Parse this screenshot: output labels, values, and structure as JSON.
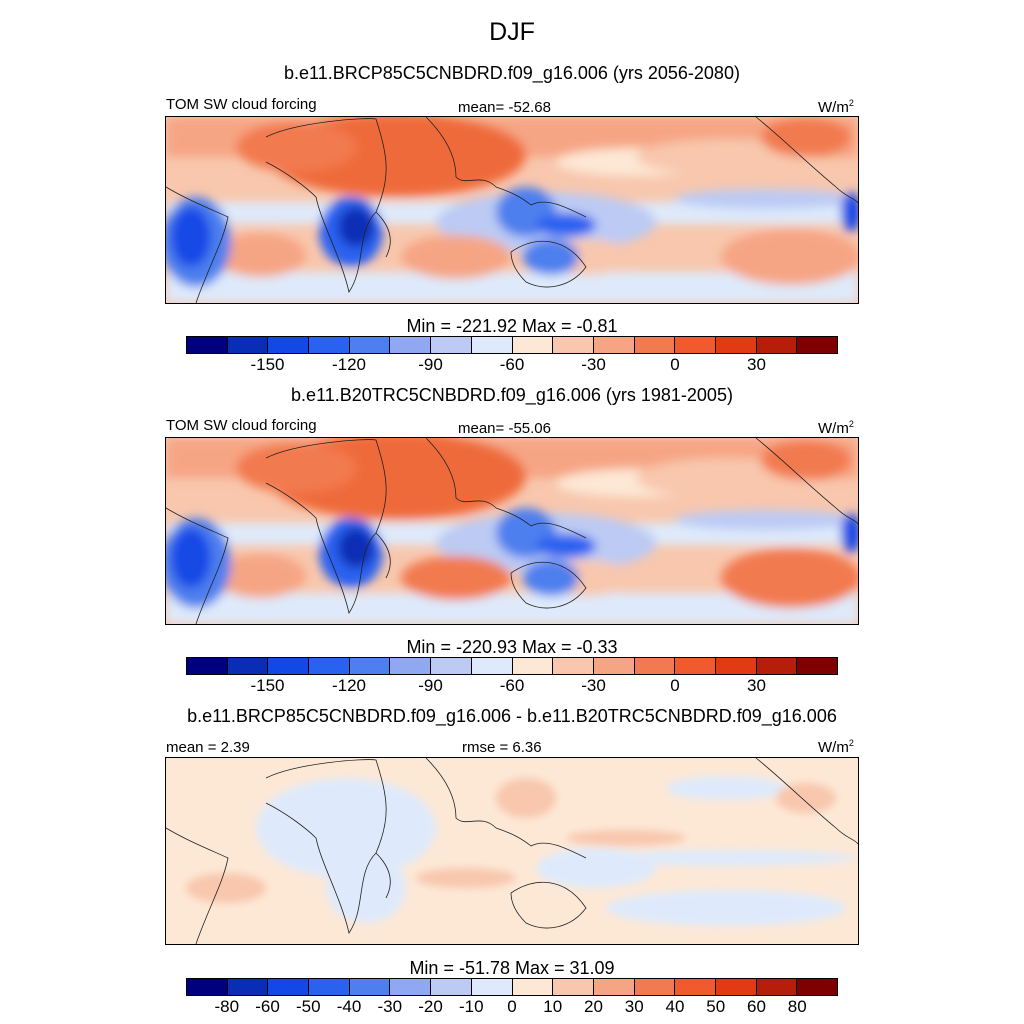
{
  "title": "DJF",
  "panels": [
    {
      "id": "p1",
      "title": "b.e11.BRCP85C5CNBDRD.f09_g16.006 (yrs 2056-2080)",
      "variable": "TOM SW cloud forcing",
      "stat_left": "",
      "stat_center": "mean= -52.68",
      "units": "W/m",
      "units_sup": "2",
      "minmax": "Min = -221.92 Max =  -0.81",
      "colorbar": {
        "colors": [
          "#00007f",
          "#0a2db5",
          "#1248e6",
          "#2a62f0",
          "#4d7fee",
          "#8fa8f1",
          "#bccaf4",
          "#deeafb",
          "#fde8d6",
          "#f8c7ad",
          "#f6a584",
          "#f27a50",
          "#ef5a2e",
          "#e23a14",
          "#b51f0a",
          "#7f0000"
        ],
        "labels": [
          "-150",
          "-120",
          "-90",
          "-60",
          "-30",
          "0",
          "30"
        ],
        "label_boundaries": [
          2,
          4,
          6,
          8,
          10,
          12,
          14
        ]
      }
    },
    {
      "id": "p2",
      "title": "b.e11.B20TRC5CNBDRD.f09_g16.006 (yrs 1981-2005)",
      "variable": "TOM SW cloud forcing",
      "stat_left": "",
      "stat_center": "mean= -55.06",
      "units": "W/m",
      "units_sup": "2",
      "minmax": "Min = -220.93 Max =  -0.33",
      "colorbar": {
        "colors": [
          "#00007f",
          "#0a2db5",
          "#1248e6",
          "#2a62f0",
          "#4d7fee",
          "#8fa8f1",
          "#bccaf4",
          "#deeafb",
          "#fde8d6",
          "#f8c7ad",
          "#f6a584",
          "#f27a50",
          "#ef5a2e",
          "#e23a14",
          "#b51f0a",
          "#7f0000"
        ],
        "labels": [
          "-150",
          "-120",
          "-90",
          "-60",
          "-30",
          "0",
          "30"
        ],
        "label_boundaries": [
          2,
          4,
          6,
          8,
          10,
          12,
          14
        ]
      }
    },
    {
      "id": "p3",
      "title": "b.e11.BRCP85C5CNBDRD.f09_g16.006 - b.e11.B20TRC5CNBDRD.f09_g16.006",
      "variable": "",
      "stat_left": "mean =   2.39",
      "stat_center": "rmse =   6.36",
      "units": "W/m",
      "units_sup": "2",
      "minmax": "Min = -51.78 Max =  31.09",
      "colorbar": {
        "colors": [
          "#00007f",
          "#0a2db5",
          "#1248e6",
          "#2a62f0",
          "#4d7fee",
          "#8fa8f1",
          "#bccaf4",
          "#deeafb",
          "#fde8d6",
          "#f8c7ad",
          "#f6a584",
          "#f27a50",
          "#ef5a2e",
          "#e23a14",
          "#b51f0a",
          "#7f0000"
        ],
        "labels": [
          "-80",
          "-60",
          "-50",
          "-40",
          "-30",
          "-20",
          "-10",
          "0",
          "10",
          "20",
          "30",
          "40",
          "50",
          "60",
          "80"
        ],
        "label_boundaries": [
          1,
          2,
          3,
          4,
          5,
          6,
          7,
          8,
          9,
          10,
          11,
          12,
          13,
          14,
          15
        ]
      }
    }
  ]
}
